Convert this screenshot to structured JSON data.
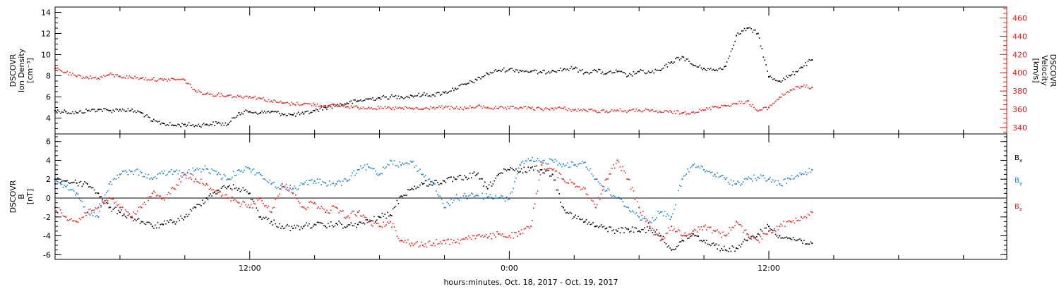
{
  "chart_data": [
    {
      "type": "scatter",
      "ylabel_lines": [
        "DSCOVR",
        "Ion Density",
        "[cm⁻³]"
      ],
      "y2label_lines": [
        "DSCOVR",
        "Velocity",
        "[km/s]"
      ],
      "ylim": [
        2.5,
        14.5
      ],
      "y2lim": [
        333,
        472
      ],
      "yticks": [
        4,
        6,
        8,
        10,
        12,
        14
      ],
      "y2ticks": [
        340,
        360,
        380,
        400,
        420,
        440,
        460
      ],
      "left_axis_color": "#000000",
      "right_axis_color": "#e8201c",
      "series": [
        {
          "color": "#000000",
          "axis": "left",
          "x": [
            0.0,
            0.5,
            1.0,
            1.5,
            2.0,
            2.5,
            3.0,
            3.5,
            4.0,
            4.5,
            5.0,
            5.5,
            6.0,
            6.5,
            7.0,
            7.5,
            8.0,
            8.5,
            9.0,
            9.5,
            10.0,
            10.5,
            11.0,
            11.5,
            12.0,
            12.5,
            13.0,
            13.5,
            14.0,
            14.5,
            15.0,
            15.5,
            16.0,
            16.5,
            17.0,
            17.5,
            18.0,
            18.5,
            19.0,
            19.5,
            20.0,
            20.5,
            21.0,
            21.5,
            22.0,
            22.5,
            23.0,
            23.5,
            24.0,
            24.5,
            25.0,
            25.5,
            26.0,
            26.5,
            27.0,
            27.5,
            28.0,
            28.5,
            29.0,
            29.5,
            30.0,
            30.5,
            31.0,
            31.5,
            32.0,
            32.5,
            33.0,
            33.5,
            34.0,
            34.5,
            35.0
          ],
          "y": [
            4.7,
            4.6,
            4.5,
            4.7,
            4.8,
            4.7,
            4.8,
            4.7,
            4.5,
            3.7,
            3.5,
            3.3,
            3.4,
            3.3,
            3.4,
            3.5,
            3.4,
            4.5,
            4.6,
            4.5,
            4.6,
            4.4,
            4.3,
            4.4,
            4.7,
            5.0,
            5.2,
            5.4,
            5.6,
            5.8,
            5.9,
            6.0,
            6.0,
            6.1,
            6.2,
            6.2,
            6.4,
            6.8,
            7.2,
            7.6,
            8.2,
            8.5,
            8.6,
            8.5,
            8.4,
            8.3,
            8.5,
            8.6,
            8.7,
            8.3,
            8.5,
            8.2,
            8.4,
            8.0,
            8.4,
            8.3,
            8.5,
            9.3,
            9.8,
            9.0,
            8.7,
            8.5,
            8.9,
            11.8,
            12.5,
            12.0,
            7.9,
            7.5,
            8.0,
            8.8,
            9.5
          ]
        },
        {
          "color": "#e8201c",
          "axis": "right",
          "x": [
            0.0,
            0.5,
            1.0,
            1.5,
            2.0,
            2.5,
            3.0,
            3.5,
            4.0,
            4.5,
            5.0,
            5.5,
            6.0,
            6.5,
            7.0,
            7.5,
            8.0,
            8.5,
            9.0,
            9.5,
            10.0,
            10.5,
            11.0,
            11.5,
            12.0,
            12.5,
            13.0,
            13.5,
            14.0,
            14.5,
            15.0,
            15.5,
            16.0,
            16.5,
            17.0,
            17.5,
            18.0,
            18.5,
            19.0,
            19.5,
            20.0,
            20.5,
            21.0,
            21.5,
            22.0,
            22.5,
            23.0,
            23.5,
            24.0,
            24.5,
            25.0,
            25.5,
            26.0,
            26.5,
            27.0,
            27.5,
            28.0,
            28.5,
            29.0,
            29.5,
            30.0,
            30.5,
            31.0,
            31.5,
            32.0,
            32.5,
            33.0,
            33.5,
            34.0,
            34.5,
            35.0
          ],
          "y": [
            405,
            400,
            396,
            395,
            394,
            398,
            396,
            395,
            394,
            393,
            392,
            393,
            392,
            380,
            377,
            376,
            375,
            374,
            374,
            372,
            369,
            367,
            366,
            366,
            365,
            364,
            364,
            363,
            362,
            362,
            361,
            361,
            361,
            361,
            360,
            362,
            362,
            361,
            361,
            363,
            362,
            361,
            361,
            362,
            361,
            360,
            361,
            361,
            359,
            359,
            358,
            358,
            359,
            358,
            359,
            358,
            357,
            357,
            356,
            357,
            359,
            363,
            364,
            366,
            369,
            358,
            362,
            373,
            381,
            385,
            384
          ]
        }
      ]
    },
    {
      "type": "scatter",
      "ylabel_lines": [
        "DSCOVR",
        "B",
        "[nT]"
      ],
      "ylim": [
        -6.5,
        6.8
      ],
      "yticks": [
        -6,
        -4,
        -2,
        0,
        2,
        4,
        6
      ],
      "series": [
        {
          "name": "B",
          "sub": "x",
          "color": "#000000",
          "x": [
            0.0,
            0.5,
            1.0,
            1.5,
            2.0,
            2.5,
            3.0,
            3.5,
            4.0,
            4.5,
            5.0,
            5.5,
            6.0,
            6.5,
            7.0,
            7.5,
            8.0,
            8.5,
            9.0,
            9.5,
            10.0,
            10.5,
            11.0,
            11.5,
            12.0,
            12.5,
            13.0,
            13.5,
            14.0,
            14.5,
            15.0,
            15.5,
            16.0,
            16.5,
            17.0,
            17.5,
            18.0,
            18.5,
            19.0,
            19.5,
            20.0,
            20.5,
            21.0,
            21.5,
            22.0,
            22.5,
            23.0,
            23.5,
            24.0,
            24.5,
            25.0,
            25.5,
            26.0,
            26.5,
            27.0,
            27.5,
            28.0,
            28.5,
            29.0,
            29.5,
            30.0,
            30.5,
            31.0,
            31.5,
            32.0,
            32.5,
            33.0,
            33.5,
            34.0,
            34.5,
            35.0
          ],
          "y": [
            2.0,
            1.8,
            1.6,
            1.5,
            0.5,
            -1.0,
            -1.5,
            -2.0,
            -2.5,
            -3.0,
            -2.8,
            -2.5,
            -2.0,
            -1.0,
            0.0,
            0.8,
            1.2,
            1.0,
            0.5,
            -2.0,
            -2.5,
            -3.0,
            -3.2,
            -3.0,
            -2.8,
            -3.0,
            -2.7,
            -3.0,
            -2.8,
            -2.5,
            -2.0,
            -1.8,
            0.2,
            1.0,
            1.5,
            1.6,
            1.8,
            2.0,
            2.2,
            2.5,
            1.0,
            2.5,
            3.0,
            2.8,
            3.2,
            3.0,
            2.5,
            -1.0,
            -2.0,
            -2.5,
            -3.0,
            -3.2,
            -3.5,
            -3.3,
            -3.5,
            -3.2,
            -4.0,
            -5.5,
            -4.5,
            -3.8,
            -4.5,
            -5.0,
            -5.5,
            -5.3,
            -4.5,
            -3.8,
            -3.0,
            -4.0,
            -4.3,
            -4.5,
            -4.8
          ]
        },
        {
          "name": "B",
          "sub": "y",
          "color": "#1a7fd6",
          "x": [
            0.0,
            0.5,
            1.0,
            1.5,
            2.0,
            2.5,
            3.0,
            3.5,
            4.0,
            4.5,
            5.0,
            5.5,
            6.0,
            6.5,
            7.0,
            7.5,
            8.0,
            8.5,
            9.0,
            9.5,
            10.0,
            10.5,
            11.0,
            11.5,
            12.0,
            12.5,
            13.0,
            13.5,
            14.0,
            14.5,
            15.0,
            15.5,
            16.0,
            16.5,
            17.0,
            17.5,
            18.0,
            18.5,
            19.0,
            19.5,
            20.0,
            20.5,
            21.0,
            21.5,
            22.0,
            22.5,
            23.0,
            23.5,
            24.0,
            24.5,
            25.0,
            25.5,
            26.0,
            26.5,
            27.0,
            27.5,
            28.0,
            28.5,
            29.0,
            29.5,
            30.0,
            30.5,
            31.0,
            31.5,
            32.0,
            32.5,
            33.0,
            33.5,
            34.0,
            34.5,
            35.0
          ],
          "y": [
            1.5,
            1.2,
            0.5,
            -1.5,
            -2.0,
            1.5,
            2.5,
            2.8,
            2.7,
            2.0,
            2.6,
            2.8,
            2.5,
            3.0,
            3.1,
            2.5,
            2.0,
            3.0,
            3.1,
            2.5,
            1.5,
            1.2,
            1.0,
            1.5,
            1.8,
            1.6,
            1.5,
            1.8,
            3.0,
            3.3,
            2.5,
            4.0,
            3.5,
            3.8,
            2.5,
            1.5,
            -1.0,
            0.0,
            0.2,
            0.3,
            0.1,
            0.0,
            -0.1,
            3.5,
            4.0,
            3.8,
            4.0,
            3.6,
            3.5,
            3.8,
            2.0,
            0.8,
            0.0,
            -1.0,
            -2.0,
            -2.5,
            -1.5,
            -2.0,
            2.0,
            3.5,
            3.0,
            2.5,
            2.0,
            1.5,
            2.0,
            2.2,
            2.0,
            1.5,
            2.0,
            2.5,
            3.0
          ]
        },
        {
          "name": "B",
          "sub": "z",
          "color": "#e8201c",
          "x": [
            0.0,
            0.5,
            1.0,
            1.5,
            2.0,
            2.5,
            3.0,
            3.5,
            4.0,
            4.5,
            5.0,
            5.5,
            6.0,
            6.5,
            7.0,
            7.5,
            8.0,
            8.5,
            9.0,
            9.5,
            10.0,
            10.5,
            11.0,
            11.5,
            12.0,
            12.5,
            13.0,
            13.5,
            14.0,
            14.5,
            15.0,
            15.5,
            16.0,
            16.5,
            17.0,
            17.5,
            18.0,
            18.5,
            19.0,
            19.5,
            20.0,
            20.5,
            21.0,
            21.5,
            22.0,
            22.5,
            23.0,
            23.5,
            24.0,
            24.5,
            25.0,
            25.5,
            26.0,
            26.5,
            27.0,
            27.5,
            28.0,
            28.5,
            29.0,
            29.5,
            30.0,
            30.5,
            31.0,
            31.5,
            32.0,
            32.5,
            33.0,
            33.5,
            34.0,
            34.5,
            35.0
          ],
          "y": [
            -1.0,
            -2.0,
            -2.5,
            -1.5,
            -1.0,
            0.0,
            -1.0,
            -2.0,
            -1.0,
            0.5,
            0.0,
            1.0,
            2.5,
            2.0,
            1.5,
            0.5,
            0.0,
            -0.5,
            -1.0,
            0.0,
            -1.5,
            1.5,
            0.5,
            -1.0,
            -0.5,
            -1.5,
            -1.0,
            -2.0,
            -1.5,
            -2.5,
            -3.0,
            -2.5,
            -4.5,
            -4.8,
            -5.0,
            -4.8,
            -4.5,
            -4.7,
            -4.2,
            -4.0,
            -4.2,
            -3.8,
            -4.0,
            -3.8,
            -3.0,
            3.5,
            3.0,
            2.0,
            1.5,
            1.0,
            -1.0,
            2.0,
            4.0,
            2.0,
            -1.0,
            -3.0,
            -4.5,
            -3.0,
            -4.0,
            -3.5,
            -3.0,
            -3.5,
            -4.0,
            -2.5,
            -3.8,
            -4.5,
            -3.5,
            -3.0,
            -2.5,
            -2.0,
            -1.5
          ]
        }
      ]
    }
  ],
  "time_axis": {
    "xlim_hours": [
      0,
      44
    ],
    "major_ticks": [
      {
        "hour": 9,
        "label": "12:00"
      },
      {
        "hour": 21,
        "label": "0:00"
      },
      {
        "hour": 33,
        "label": "12:00"
      }
    ],
    "minor_ticks_hours": [
      3,
      6,
      12,
      15,
      18,
      24,
      27,
      30,
      36,
      39,
      42
    ],
    "xlabel": "hours:minutes, Oct. 18, 2017 - Oct. 19, 2017"
  }
}
